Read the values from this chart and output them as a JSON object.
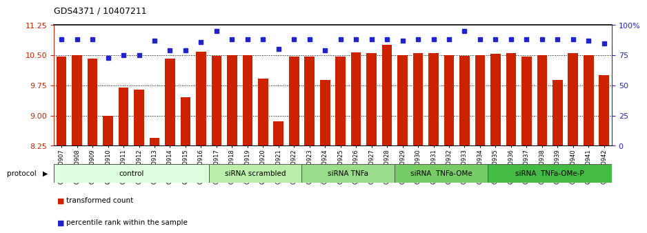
{
  "title": "GDS4371 / 10407211",
  "samples": [
    "GSM790907",
    "GSM790908",
    "GSM790909",
    "GSM790910",
    "GSM790911",
    "GSM790912",
    "GSM790913",
    "GSM790914",
    "GSM790915",
    "GSM790916",
    "GSM790917",
    "GSM790918",
    "GSM790919",
    "GSM790920",
    "GSM790921",
    "GSM790922",
    "GSM790923",
    "GSM790924",
    "GSM790925",
    "GSM790926",
    "GSM790927",
    "GSM790928",
    "GSM790929",
    "GSM790930",
    "GSM790931",
    "GSM790932",
    "GSM790933",
    "GSM790934",
    "GSM790935",
    "GSM790936",
    "GSM790937",
    "GSM790938",
    "GSM790939",
    "GSM790940",
    "GSM790941",
    "GSM790942"
  ],
  "bar_values": [
    10.47,
    10.5,
    10.42,
    9.0,
    9.7,
    9.65,
    8.45,
    10.42,
    9.45,
    10.58,
    10.49,
    10.5,
    10.5,
    9.92,
    8.85,
    10.47,
    10.46,
    9.88,
    10.47,
    10.57,
    10.56,
    10.76,
    10.5,
    10.56,
    10.55,
    10.5,
    10.49,
    10.5,
    10.54,
    10.56,
    10.47,
    10.5,
    9.88,
    10.56,
    10.5,
    10.0
  ],
  "percentile_values": [
    88,
    88,
    88,
    73,
    75,
    75,
    87,
    79,
    79,
    86,
    95,
    88,
    88,
    88,
    80,
    88,
    88,
    79,
    88,
    88,
    88,
    88,
    87,
    88,
    88,
    88,
    95,
    88,
    88,
    88,
    88,
    88,
    88,
    88,
    87,
    85
  ],
  "ylim_left": [
    8.25,
    11.25
  ],
  "ylim_right": [
    0,
    100
  ],
  "yticks_left": [
    8.25,
    9.0,
    9.75,
    10.5,
    11.25
  ],
  "yticks_right": [
    0,
    25,
    50,
    75,
    100
  ],
  "bar_color": "#cc2200",
  "dot_color": "#2222cc",
  "groups": [
    {
      "label": "control",
      "start": 0,
      "end": 9,
      "color": "#ddffdd"
    },
    {
      "label": "siRNA scrambled",
      "start": 10,
      "end": 15,
      "color": "#bbeeaa"
    },
    {
      "label": "siRNA TNFa",
      "start": 16,
      "end": 21,
      "color": "#99dd88"
    },
    {
      "label": "siRNA  TNFa-OMe",
      "start": 22,
      "end": 27,
      "color": "#77cc66"
    },
    {
      "label": "siRNA  TNFa-OMe-P",
      "start": 28,
      "end": 35,
      "color": "#44bb44"
    }
  ],
  "legend_items": [
    {
      "label": "transformed count",
      "color": "#cc2200"
    },
    {
      "label": "percentile rank within the sample",
      "color": "#2222cc"
    }
  ],
  "protocol_label": "protocol",
  "gridlines": [
    9.0,
    9.75,
    10.5
  ]
}
